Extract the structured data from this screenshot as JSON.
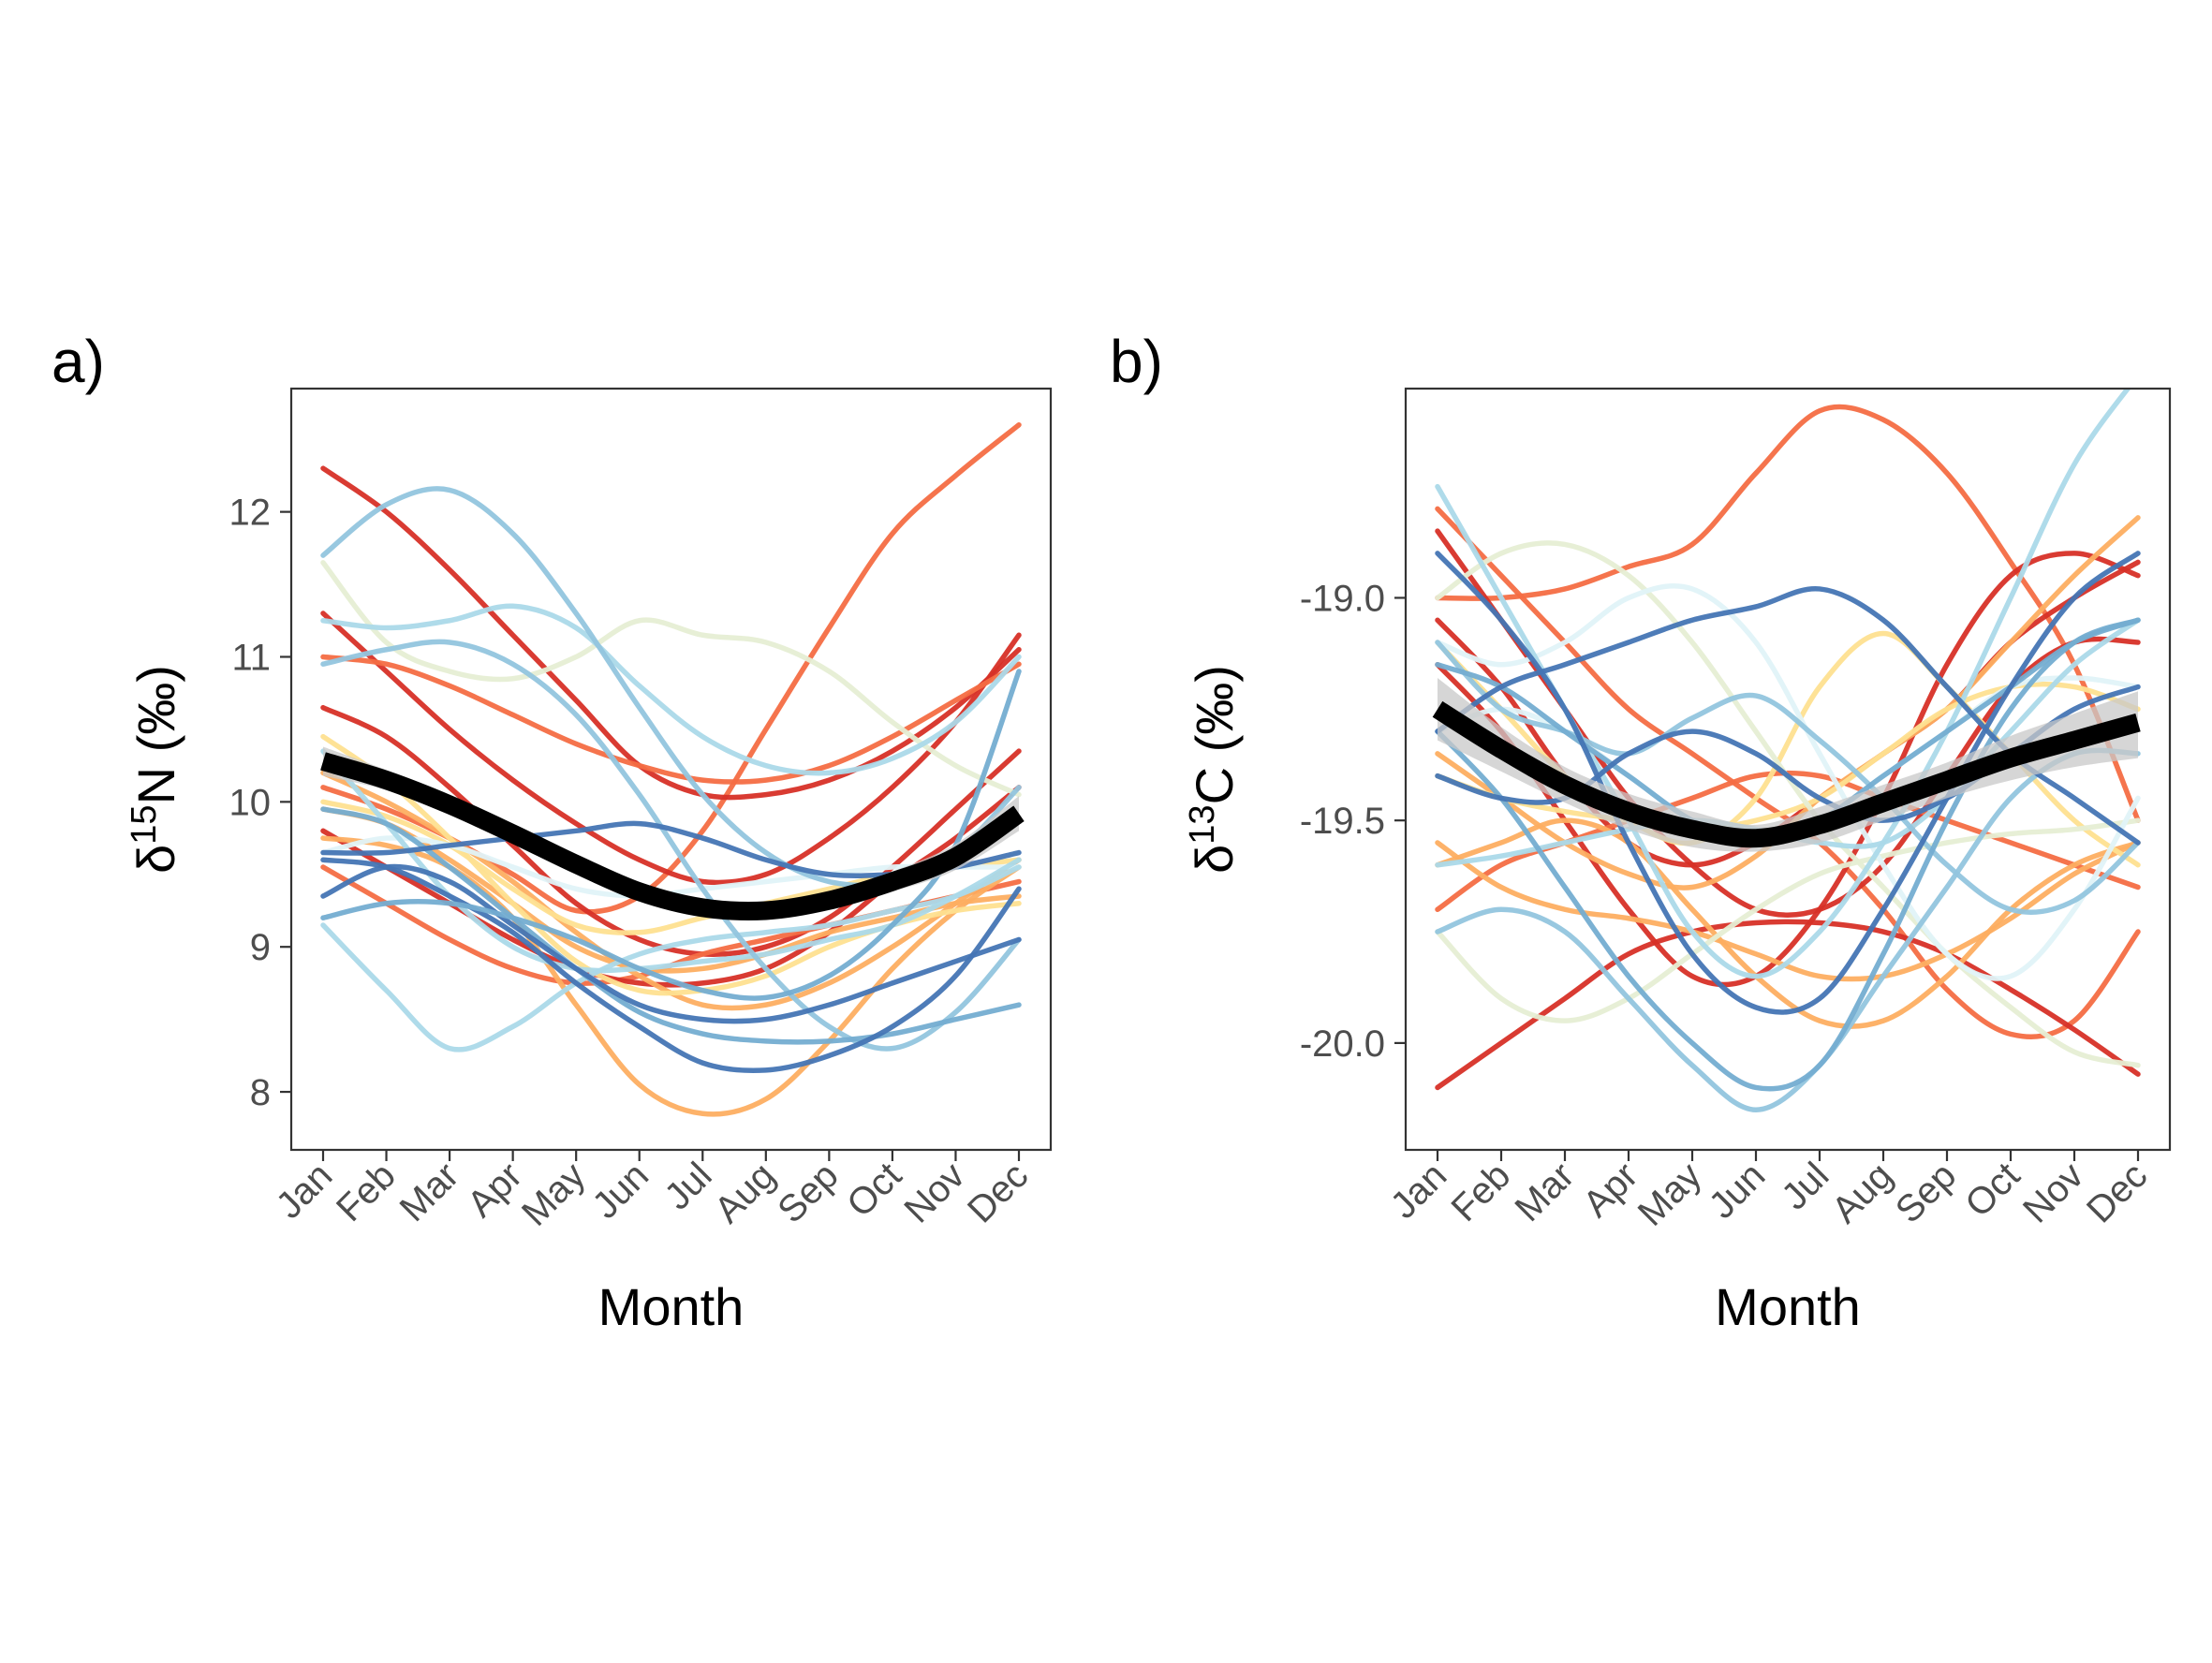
{
  "colors": {
    "mean_line": "#000000",
    "ribbon": "#c8c8c8",
    "panel_border": "#333333",
    "tick_text": "#4d4d4d",
    "title_text": "#000000"
  },
  "chart_data": [
    {
      "type": "line",
      "panel_label": "a)",
      "xlabel": "Month",
      "ylabel_delta": "δ",
      "ylabel_sup": "15",
      "ylabel_rest": "N (‰)",
      "categories": [
        "Jan",
        "Feb",
        "Mar",
        "Apr",
        "May",
        "Jun",
        "Jul",
        "Aug",
        "Sep",
        "Oct",
        "Nov",
        "Dec"
      ],
      "ylim": [
        7.6,
        12.85
      ],
      "yticks": [
        8,
        9,
        10,
        11,
        12
      ],
      "ytick_labels": [
        "8",
        "9",
        "10",
        "11",
        "12"
      ],
      "grid": false,
      "mean": {
        "values": [
          10.28,
          10.15,
          9.98,
          9.78,
          9.57,
          9.38,
          9.27,
          9.25,
          9.32,
          9.45,
          9.62,
          9.92
        ]
      },
      "ribbon": {
        "lower": [
          10.18,
          10.08,
          9.92,
          9.72,
          9.52,
          9.33,
          9.21,
          9.19,
          9.26,
          9.38,
          9.53,
          9.8
        ],
        "upper": [
          10.38,
          10.22,
          10.04,
          9.84,
          9.62,
          9.43,
          9.33,
          9.31,
          9.38,
          9.52,
          9.71,
          10.04
        ]
      },
      "series": [
        {
          "color": "#f46d43",
          "values": [
            10.1,
            9.95,
            9.75,
            9.5,
            9.25,
            9.35,
            9.8,
            10.5,
            11.2,
            11.85,
            12.25,
            12.6
          ]
        },
        {
          "color": "#d73027",
          "values": [
            12.3,
            12.0,
            11.6,
            11.15,
            10.7,
            10.25,
            10.05,
            10.05,
            10.15,
            10.35,
            10.65,
            11.05
          ]
        },
        {
          "color": "#d73027",
          "values": [
            11.3,
            10.9,
            10.5,
            10.15,
            9.85,
            9.6,
            9.45,
            9.5,
            9.75,
            10.1,
            10.55,
            11.15
          ]
        },
        {
          "color": "#f46d43",
          "values": [
            11.0,
            10.95,
            10.8,
            10.6,
            10.4,
            10.25,
            10.15,
            10.15,
            10.25,
            10.45,
            10.7,
            10.95
          ]
        },
        {
          "color": "#d73027",
          "values": [
            10.65,
            10.45,
            10.1,
            9.7,
            9.3,
            9.05,
            8.95,
            9.0,
            9.2,
            9.55,
            9.95,
            10.35
          ]
        },
        {
          "color": "#f46d43",
          "values": [
            9.55,
            9.3,
            9.05,
            8.85,
            8.75,
            8.8,
            8.95,
            9.05,
            9.15,
            9.25,
            9.35,
            9.45
          ]
        },
        {
          "color": "#d73027",
          "values": [
            9.8,
            9.55,
            9.3,
            9.05,
            8.85,
            8.75,
            8.75,
            8.85,
            9.1,
            9.45,
            9.75,
            10.1
          ]
        },
        {
          "color": "#fdae61",
          "values": [
            9.75,
            9.7,
            9.55,
            9.2,
            8.6,
            8.05,
            7.85,
            7.95,
            8.35,
            8.85,
            9.25,
            9.55
          ]
        },
        {
          "color": "#fdae61",
          "values": [
            10.2,
            10.0,
            9.75,
            9.45,
            9.1,
            8.8,
            8.6,
            8.6,
            8.75,
            9.0,
            9.3,
            9.6
          ]
        },
        {
          "color": "#fdae61",
          "values": [
            9.95,
            9.85,
            9.6,
            9.3,
            9.0,
            8.85,
            8.85,
            8.95,
            9.1,
            9.2,
            9.3,
            9.35
          ]
        },
        {
          "color": "#fee090",
          "values": [
            10.0,
            9.9,
            9.7,
            9.4,
            9.15,
            9.1,
            9.2,
            9.3,
            9.4,
            9.5,
            9.55,
            9.6
          ]
        },
        {
          "color": "#fee090",
          "values": [
            10.45,
            10.15,
            9.75,
            9.3,
            8.9,
            8.7,
            8.7,
            8.8,
            9.0,
            9.15,
            9.25,
            9.3
          ]
        },
        {
          "color": "#e0f3f8",
          "values": [
            9.65,
            9.75,
            9.7,
            9.55,
            9.4,
            9.35,
            9.4,
            9.45,
            9.5,
            9.55,
            9.55,
            9.55
          ]
        },
        {
          "color": "#e6eed4",
          "values": [
            11.65,
            11.1,
            10.9,
            10.85,
            11.0,
            11.25,
            11.15,
            11.1,
            10.9,
            10.55,
            10.25,
            10.05
          ]
        },
        {
          "color": "#abd9e9",
          "values": [
            9.15,
            8.7,
            8.3,
            8.45,
            8.75,
            8.95,
            9.05,
            9.1,
            9.15,
            9.25,
            9.35,
            9.55
          ]
        },
        {
          "color": "#abd9e9",
          "values": [
            11.25,
            11.2,
            11.25,
            11.35,
            11.2,
            10.8,
            10.45,
            10.25,
            10.2,
            10.3,
            10.55,
            11.0
          ]
        },
        {
          "color": "#abd9e9",
          "values": [
            10.35,
            9.85,
            9.35,
            9.0,
            8.85,
            8.85,
            8.9,
            8.95,
            9.05,
            9.15,
            9.35,
            9.6
          ]
        },
        {
          "color": "#92c5de",
          "values": [
            11.7,
            12.05,
            12.15,
            11.85,
            11.3,
            10.65,
            10.05,
            9.65,
            9.45,
            9.45,
            9.65,
            10.1
          ]
        },
        {
          "color": "#92c5de",
          "values": [
            10.95,
            11.05,
            11.1,
            10.95,
            10.6,
            10.05,
            9.4,
            8.85,
            8.45,
            8.3,
            8.55,
            9.05
          ]
        },
        {
          "color": "#74add1",
          "values": [
            9.95,
            9.85,
            9.55,
            9.2,
            8.85,
            8.55,
            8.4,
            8.35,
            8.35,
            8.4,
            8.5,
            8.6
          ]
        },
        {
          "color": "#4575b4",
          "values": [
            9.6,
            9.55,
            9.35,
            9.1,
            8.75,
            8.45,
            8.2,
            8.15,
            8.25,
            8.45,
            8.8,
            9.4
          ]
        },
        {
          "color": "#4575b4",
          "values": [
            9.65,
            9.65,
            9.7,
            9.75,
            9.8,
            9.85,
            9.75,
            9.6,
            9.5,
            9.5,
            9.55,
            9.65
          ]
        },
        {
          "color": "#4575b4",
          "values": [
            9.35,
            9.55,
            9.45,
            9.15,
            8.85,
            8.6,
            8.5,
            8.5,
            8.6,
            8.75,
            8.9,
            9.05
          ]
        },
        {
          "color": "#74add1",
          "values": [
            9.2,
            9.3,
            9.3,
            9.2,
            9.05,
            8.85,
            8.7,
            8.65,
            8.8,
            9.15,
            9.7,
            10.9
          ]
        }
      ]
    },
    {
      "type": "line",
      "panel_label": "b)",
      "xlabel": "Month",
      "ylabel_delta": "δ",
      "ylabel_sup": "13",
      "ylabel_rest": "C (‰)",
      "categories": [
        "Jan",
        "Feb",
        "Mar",
        "Apr",
        "May",
        "Jun",
        "Jul",
        "Aug",
        "Sep",
        "Oct",
        "Nov",
        "Dec"
      ],
      "ylim": [
        -20.24,
        -18.53
      ],
      "yticks": [
        -20.0,
        -19.5,
        -19.0
      ],
      "ytick_labels": [
        "-20.0",
        "-19.5",
        "-19.0"
      ],
      "grid": false,
      "mean": {
        "values": [
          -19.25,
          -19.34,
          -19.42,
          -19.48,
          -19.52,
          -19.54,
          -19.51,
          -19.46,
          -19.41,
          -19.36,
          -19.32,
          -19.28
        ]
      },
      "ribbon": {
        "lower": [
          -19.32,
          -19.39,
          -19.46,
          -19.52,
          -19.56,
          -19.57,
          -19.55,
          -19.5,
          -19.45,
          -19.41,
          -19.38,
          -19.36
        ],
        "upper": [
          -19.18,
          -19.29,
          -19.38,
          -19.44,
          -19.48,
          -19.51,
          -19.47,
          -19.42,
          -19.37,
          -19.31,
          -19.26,
          -19.21
        ]
      },
      "series": [
        {
          "color": "#f46d43",
          "values": [
            -19.0,
            -19.0,
            -18.98,
            -18.93,
            -18.88,
            -18.72,
            -18.58,
            -18.6,
            -18.72,
            -18.92,
            -19.15,
            -19.5
          ]
        },
        {
          "color": "#f46d43",
          "values": [
            -18.8,
            -18.95,
            -19.1,
            -19.25,
            -19.35,
            -19.45,
            -19.55,
            -19.7,
            -19.88,
            -19.98,
            -19.95,
            -19.75
          ]
        },
        {
          "color": "#d73027",
          "values": [
            -18.85,
            -19.05,
            -19.25,
            -19.45,
            -19.6,
            -19.7,
            -19.7,
            -19.6,
            -19.4,
            -19.2,
            -19.1,
            -19.1
          ]
        },
        {
          "color": "#d73027",
          "values": [
            -20.1,
            -20.0,
            -19.9,
            -19.8,
            -19.75,
            -19.73,
            -19.73,
            -19.75,
            -19.8,
            -19.88,
            -19.97,
            -20.07
          ]
        },
        {
          "color": "#d73027",
          "values": [
            -19.15,
            -19.3,
            -19.5,
            -19.7,
            -19.85,
            -19.85,
            -19.7,
            -19.45,
            -19.15,
            -18.95,
            -18.9,
            -18.95
          ]
        },
        {
          "color": "#d73027",
          "values": [
            -19.05,
            -19.2,
            -19.4,
            -19.55,
            -19.6,
            -19.55,
            -19.45,
            -19.35,
            -19.25,
            -19.1,
            -19.0,
            -18.92
          ]
        },
        {
          "color": "#f46d43",
          "values": [
            -19.7,
            -19.6,
            -19.55,
            -19.5,
            -19.45,
            -19.4,
            -19.4,
            -19.45,
            -19.5,
            -19.55,
            -19.6,
            -19.65
          ]
        },
        {
          "color": "#fdae61",
          "values": [
            -19.55,
            -19.65,
            -19.7,
            -19.72,
            -19.75,
            -19.8,
            -19.85,
            -19.85,
            -19.8,
            -19.72,
            -19.62,
            -19.55
          ]
        },
        {
          "color": "#fdae61",
          "values": [
            -19.35,
            -19.45,
            -19.55,
            -19.62,
            -19.65,
            -19.58,
            -19.45,
            -19.35,
            -19.25,
            -19.1,
            -18.95,
            -18.82
          ]
        },
        {
          "color": "#fdae61",
          "values": [
            -19.6,
            -19.55,
            -19.5,
            -19.55,
            -19.7,
            -19.85,
            -19.95,
            -19.95,
            -19.85,
            -19.7,
            -19.6,
            -19.55
          ]
        },
        {
          "color": "#fee090",
          "values": [
            -19.1,
            -19.25,
            -19.4,
            -19.5,
            -19.55,
            -19.45,
            -19.2,
            -19.08,
            -19.2,
            -19.35,
            -19.5,
            -19.6
          ]
        },
        {
          "color": "#fee090",
          "values": [
            -19.4,
            -19.45,
            -19.48,
            -19.5,
            -19.52,
            -19.5,
            -19.45,
            -19.35,
            -19.25,
            -19.2,
            -19.2,
            -19.25
          ]
        },
        {
          "color": "#e6eed4",
          "values": [
            -19.0,
            -18.9,
            -18.88,
            -18.95,
            -19.1,
            -19.3,
            -19.5,
            -19.65,
            -19.8,
            -19.92,
            -20.02,
            -20.05
          ]
        },
        {
          "color": "#e6eed4",
          "values": [
            -19.75,
            -19.9,
            -19.95,
            -19.9,
            -19.8,
            -19.7,
            -19.62,
            -19.58,
            -19.55,
            -19.53,
            -19.52,
            -19.5
          ]
        },
        {
          "color": "#e0f3f8",
          "values": [
            -19.1,
            -19.15,
            -19.1,
            -19.0,
            -18.98,
            -19.1,
            -19.35,
            -19.6,
            -19.8,
            -19.85,
            -19.7,
            -19.45
          ]
        },
        {
          "color": "#e0f3f8",
          "values": [
            -19.3,
            -19.25,
            -19.3,
            -19.4,
            -19.5,
            -19.55,
            -19.5,
            -19.4,
            -19.3,
            -19.2,
            -19.18,
            -19.2
          ]
        },
        {
          "color": "#abd9e9",
          "values": [
            -18.75,
            -19.0,
            -19.25,
            -19.5,
            -19.75,
            -19.85,
            -19.75,
            -19.55,
            -19.3,
            -19.0,
            -18.7,
            -18.5
          ]
        },
        {
          "color": "#abd9e9",
          "values": [
            -19.6,
            -19.58,
            -19.55,
            -19.52,
            -19.5,
            -19.52,
            -19.55,
            -19.55,
            -19.45,
            -19.3,
            -19.15,
            -19.05
          ]
        },
        {
          "color": "#92c5de",
          "values": [
            -19.75,
            -19.7,
            -19.75,
            -19.9,
            -20.05,
            -20.15,
            -20.05,
            -19.85,
            -19.65,
            -19.45,
            -19.35,
            -19.35
          ]
        },
        {
          "color": "#92c5de",
          "values": [
            -19.1,
            -19.25,
            -19.3,
            -19.35,
            -19.27,
            -19.22,
            -19.32,
            -19.45,
            -19.6,
            -19.7,
            -19.68,
            -19.55
          ]
        },
        {
          "color": "#74add1",
          "values": [
            -19.3,
            -19.45,
            -19.65,
            -19.85,
            -20.0,
            -20.1,
            -20.05,
            -19.8,
            -19.5,
            -19.25,
            -19.1,
            -19.05
          ]
        },
        {
          "color": "#74add1",
          "values": [
            -19.15,
            -19.2,
            -19.3,
            -19.4,
            -19.5,
            -19.55,
            -19.5,
            -19.4,
            -19.3,
            -19.2,
            -19.1,
            -19.05
          ]
        },
        {
          "color": "#4575b4",
          "values": [
            -18.9,
            -19.05,
            -19.25,
            -19.55,
            -19.8,
            -19.92,
            -19.9,
            -19.7,
            -19.45,
            -19.2,
            -19.0,
            -18.9
          ]
        },
        {
          "color": "#4575b4",
          "values": [
            -19.3,
            -19.2,
            -19.15,
            -19.1,
            -19.05,
            -19.02,
            -18.98,
            -19.05,
            -19.2,
            -19.35,
            -19.45,
            -19.55
          ]
        },
        {
          "color": "#4575b4",
          "values": [
            -19.4,
            -19.45,
            -19.45,
            -19.35,
            -19.3,
            -19.35,
            -19.45,
            -19.5,
            -19.45,
            -19.35,
            -19.25,
            -19.2
          ]
        }
      ]
    }
  ]
}
